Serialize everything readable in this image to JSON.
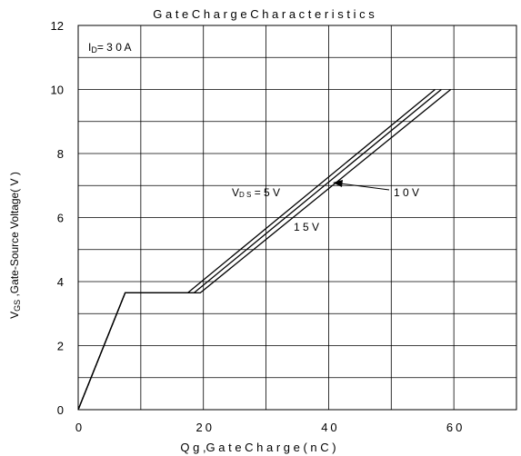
{
  "chart_data": {
    "type": "line",
    "title": "Gate Charge Characteristics",
    "xlabel": "Q g ,Gate Charge( nC )",
    "ylabel": "VGS ,Gate-Source Voltage( V )",
    "xlim": [
      0,
      70
    ],
    "ylim": [
      0,
      12
    ],
    "x_ticks": [
      "0",
      "20",
      "40",
      "60"
    ],
    "y_ticks": [
      "0",
      "2",
      "4",
      "6",
      "8",
      "10",
      "12"
    ],
    "grid": true,
    "condition_label": "ID=30A",
    "series": [
      {
        "name": "VDS=5V",
        "x": [
          0,
          7.5,
          17.5,
          57
        ],
        "y": [
          0,
          3.65,
          3.65,
          10
        ]
      },
      {
        "name": "10V",
        "x": [
          0,
          7.5,
          18.5,
          58
        ],
        "y": [
          0,
          3.65,
          3.65,
          10
        ]
      },
      {
        "name": "15V",
        "x": [
          0,
          7.5,
          19.5,
          59.5
        ],
        "y": [
          0,
          3.65,
          3.65,
          10
        ]
      }
    ],
    "annotations": [
      "V DS = 5 V",
      "1 0 V",
      "1 5 V"
    ]
  },
  "text": {
    "title": "G a t e  C h a r g e  C h a r a c t e r i s t i c s",
    "xlabel": "Q g ,G a t e  C h a r g e ( n C  )",
    "ylabel_main": "V",
    "ylabel_sub": "GS",
    "ylabel_rest": " ,Gate-Source Voltage( V )",
    "cond_main": "I",
    "cond_sub": "D",
    "cond_rest": "= 3 0 A",
    "ann_vds_main": "V",
    "ann_vds_sub": "D S",
    "ann_vds_rest": " = 5 V",
    "ann_10v": "1 0 V",
    "ann_15v": "1 5 V"
  }
}
